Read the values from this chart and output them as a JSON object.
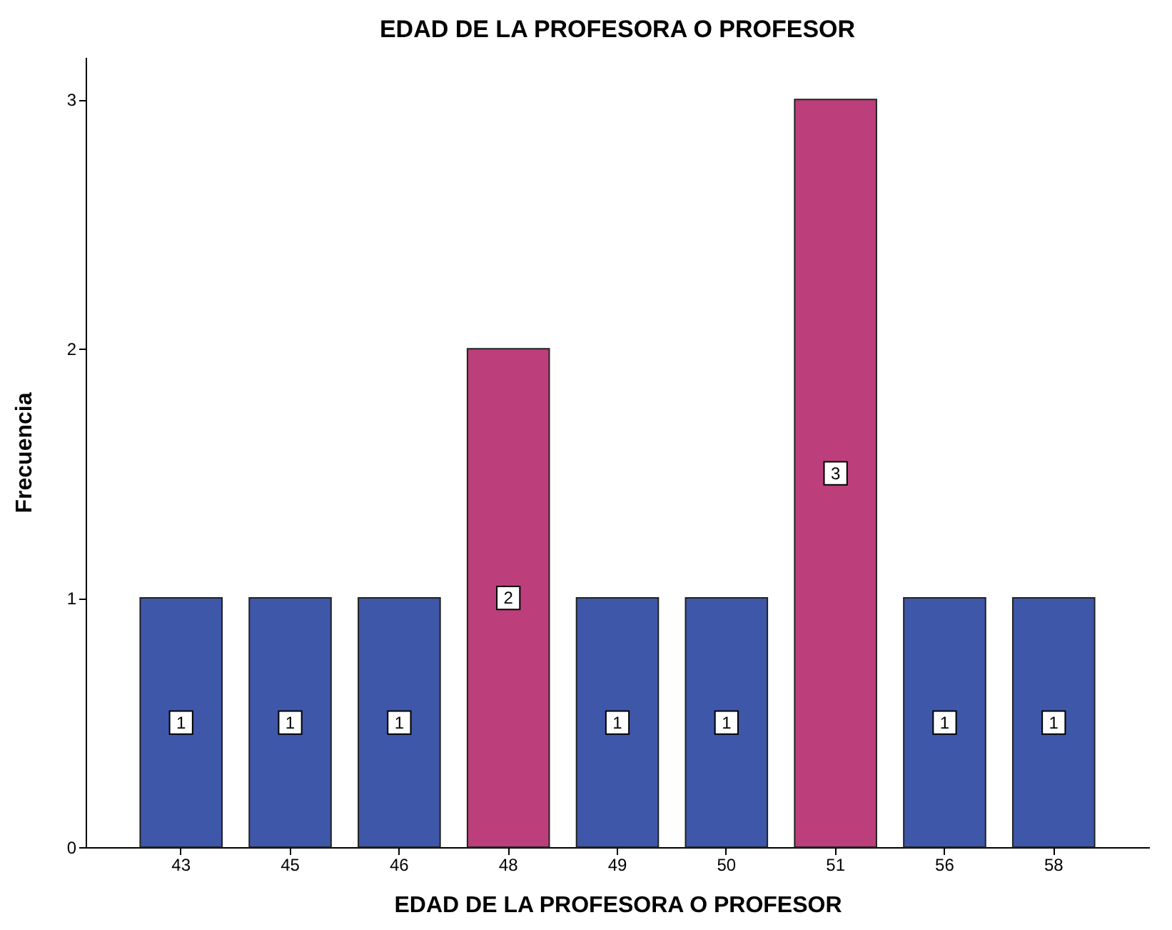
{
  "chart_data": {
    "type": "bar",
    "title": "EDAD DE LA PROFESORA O PROFESOR",
    "xlabel": "EDAD DE LA PROFESORA O PROFESOR",
    "ylabel": "Frecuencia",
    "categories": [
      "43",
      "45",
      "46",
      "48",
      "49",
      "50",
      "51",
      "56",
      "58"
    ],
    "values": [
      1,
      1,
      1,
      2,
      1,
      1,
      3,
      1,
      1
    ],
    "colors": [
      "#3e57a9",
      "#3e57a9",
      "#3e57a9",
      "#bc3f7b",
      "#3e57a9",
      "#3e57a9",
      "#bc3f7b",
      "#3e57a9",
      "#3e57a9"
    ],
    "ylim": [
      0,
      3.17
    ],
    "yticks": [
      0,
      1,
      2,
      3
    ],
    "grid": false,
    "data_labels": true
  }
}
